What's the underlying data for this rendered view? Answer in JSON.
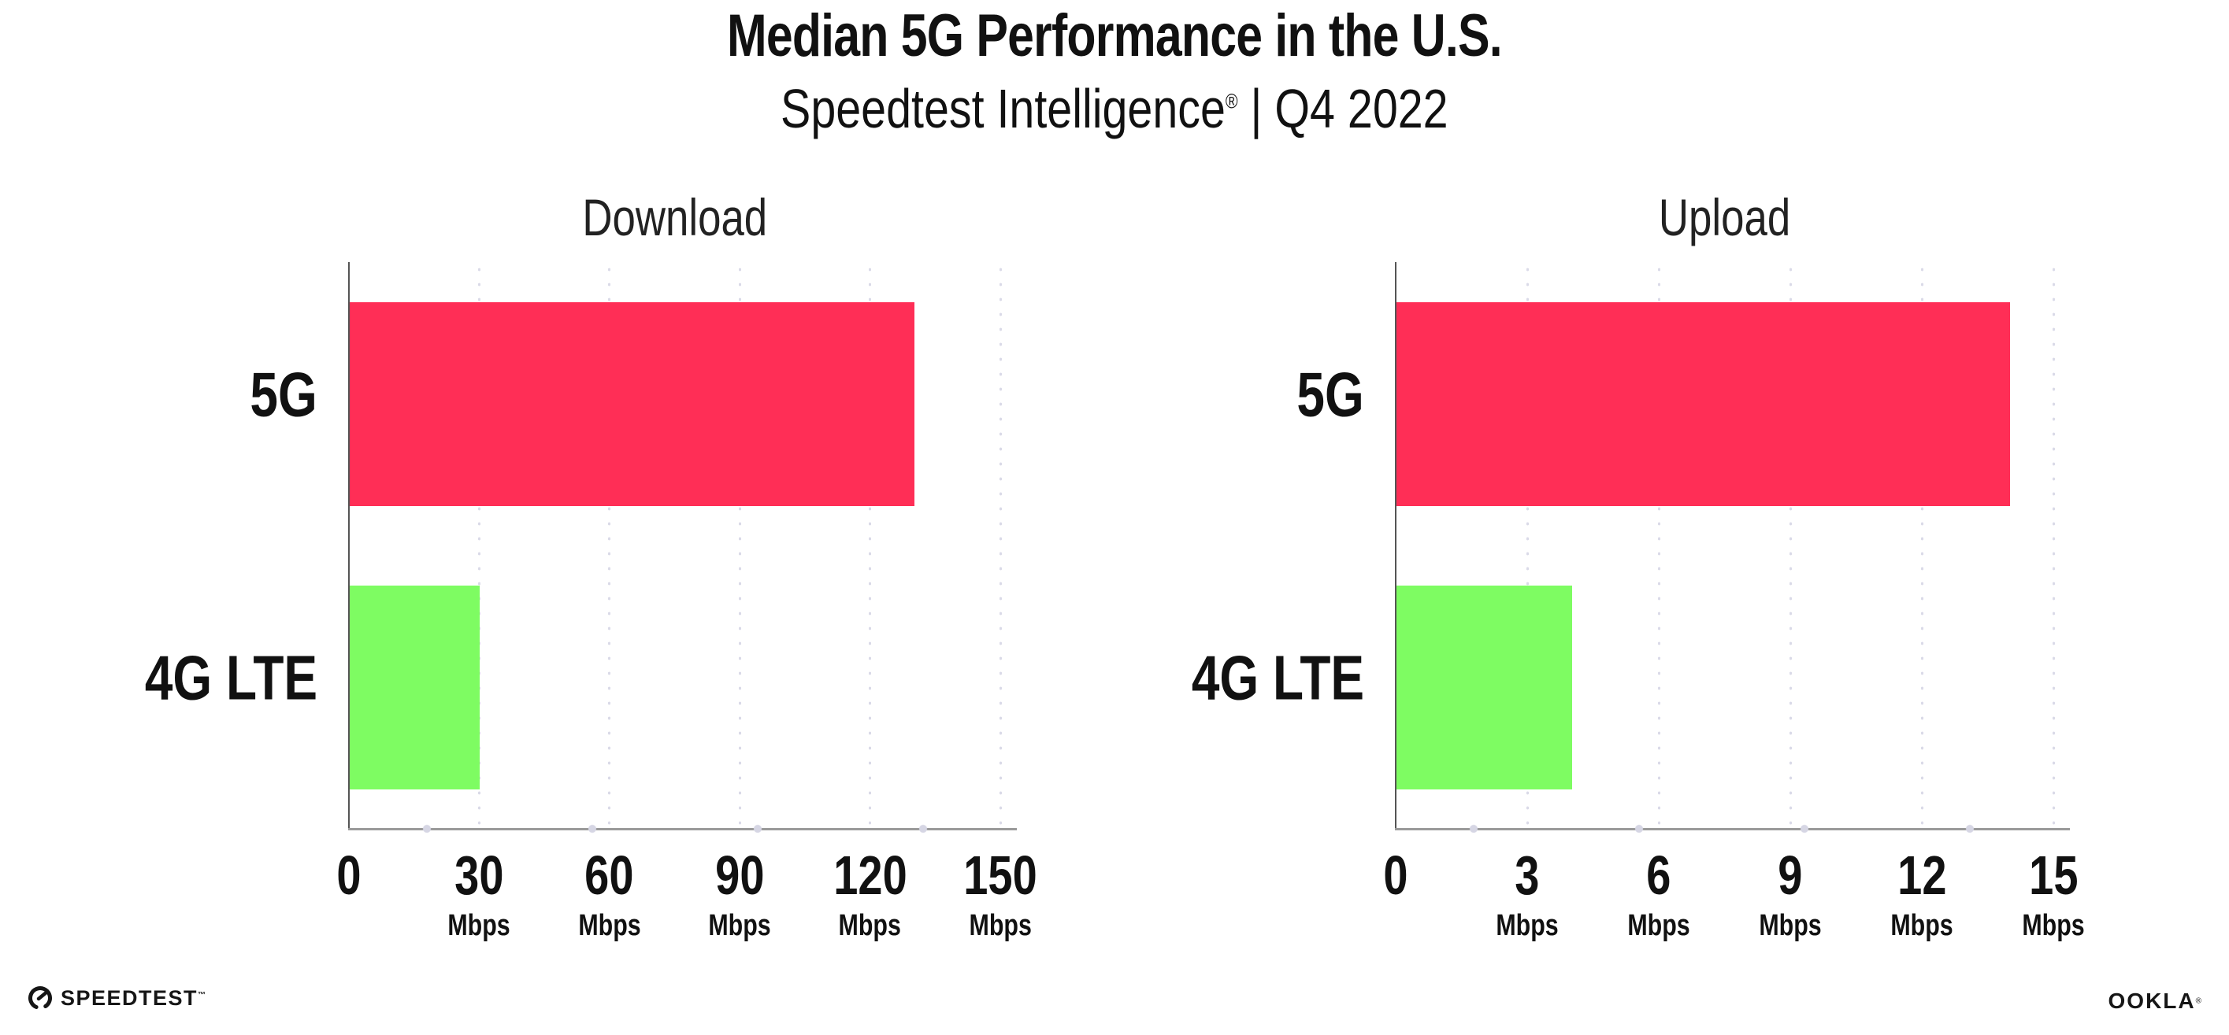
{
  "header": {
    "title": "Median 5G Performance in the U.S.",
    "subtitle_brand": "Speedtest Intelligence",
    "subtitle_reg": "®",
    "subtitle_rest": " | Q4 2022"
  },
  "footer": {
    "speedtest_label": "SPEEDTEST",
    "speedtest_tm": "™",
    "ookla_label": "OOKLA",
    "ookla_reg": "®"
  },
  "colors": {
    "bar_5g": "#FF2E56",
    "bar_4g_lte": "#7EFC62",
    "axis_line": "#555555",
    "baseline": "#9A9A9A",
    "grid_dots": "#DADAE8",
    "title_text": "#111111",
    "chart_title_text": "#222222"
  },
  "chart_data": [
    {
      "type": "bar",
      "orientation": "horizontal",
      "title": "Download",
      "categories": [
        "5G",
        "4G LTE"
      ],
      "values": [
        130,
        30
      ],
      "unit": "Mbps",
      "xlim": [
        0,
        150
      ],
      "xticks": [
        0,
        30,
        60,
        90,
        120,
        150
      ],
      "bar_colors": [
        "#FF2E56",
        "#7EFC62"
      ],
      "grid": "dotted-vertical",
      "legend": "none"
    },
    {
      "type": "bar",
      "orientation": "horizontal",
      "title": "Upload",
      "categories": [
        "5G",
        "4G LTE"
      ],
      "values": [
        14,
        4
      ],
      "unit": "Mbps",
      "xlim": [
        0,
        15
      ],
      "xticks": [
        0,
        3,
        6,
        9,
        12,
        15
      ],
      "bar_colors": [
        "#FF2E56",
        "#7EFC62"
      ],
      "grid": "dotted-vertical",
      "legend": "none"
    }
  ]
}
